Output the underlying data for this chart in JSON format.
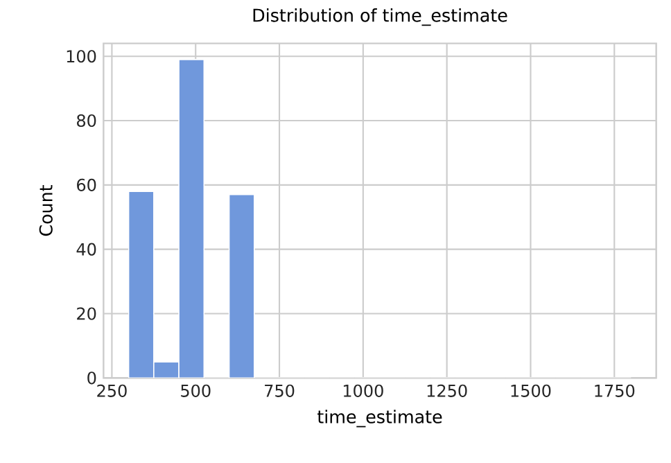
{
  "chart_data": {
    "type": "histogram",
    "title": "Distribution of time_estimate",
    "xlabel": "time_estimate",
    "ylabel": "Count",
    "bins": [
      300,
      375,
      450,
      525,
      600,
      675,
      750,
      825,
      900,
      975,
      1050,
      1125,
      1200,
      1275,
      1350,
      1425,
      1500,
      1575,
      1650,
      1725,
      1800
    ],
    "values": [
      58,
      5,
      99,
      0,
      57,
      0,
      0,
      0,
      0,
      0,
      0,
      0,
      0,
      0,
      0,
      0,
      0,
      0,
      0,
      0
    ],
    "color": "#7098dc",
    "xlim": [
      225,
      1875
    ],
    "ylim": [
      0,
      104
    ],
    "xticks": [
      250,
      500,
      750,
      1000,
      1250,
      1500,
      1750
    ],
    "yticks": [
      0,
      20,
      40,
      60,
      80,
      100
    ],
    "grid": true
  }
}
